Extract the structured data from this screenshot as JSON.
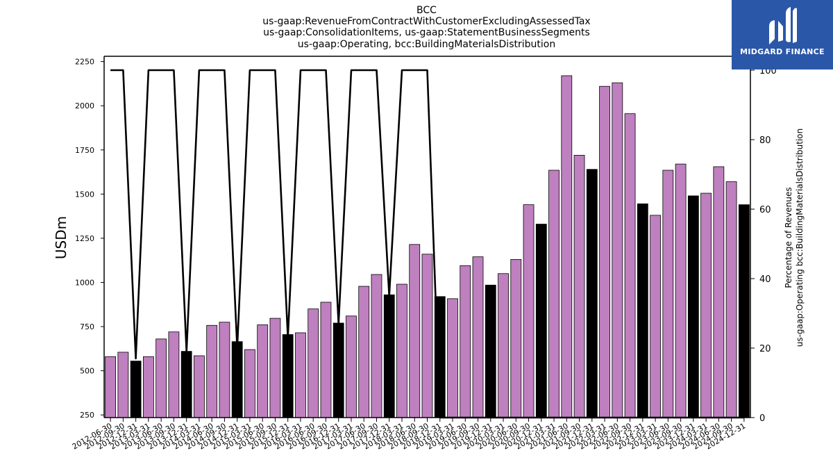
{
  "title_lines": [
    "BCC",
    "us-gaap:RevenueFromContractWithCustomerExcludingAssessedTax",
    "us-gaap:ConsolidationItems, us-gaap:StatementBusinessSegments",
    "us-gaap:Operating, bcc:BuildingMaterialsDistribution"
  ],
  "logo": {
    "text": "MIDGARD FINANCE",
    "background": "#2b57a8"
  },
  "chart_data": {
    "type": "bar",
    "title": "BCC",
    "ylabel": "USDm",
    "y2label_lines": [
      "Percentage of Revenues",
      "us-gaap:Operating bcc:BuildingMaterialsDistribution"
    ],
    "ylim": [
      235,
      2280
    ],
    "y2lim": [
      0,
      104
    ],
    "yticks": [
      250,
      500,
      750,
      1000,
      1250,
      1500,
      1750,
      2000,
      2250
    ],
    "y2ticks": [
      0,
      20,
      40,
      60,
      80,
      100
    ],
    "colors": {
      "quarter_bar": "#bf80bf",
      "annual_bar": "#000000",
      "line": "#000000"
    },
    "categories": [
      "2012-06-30",
      "2012-09-30",
      "2012-12-31",
      "2013-03-31",
      "2013-06-30",
      "2013-09-30",
      "2013-12-31",
      "2014-03-31",
      "2014-06-30",
      "2014-09-30",
      "2014-12-31",
      "2015-03-31",
      "2015-06-30",
      "2015-09-30",
      "2015-12-31",
      "2016-03-31",
      "2016-06-30",
      "2016-09-30",
      "2016-12-31",
      "2017-03-31",
      "2017-06-30",
      "2017-09-30",
      "2017-12-31",
      "2018-03-31",
      "2018-06-30",
      "2018-09-30",
      "2018-12-31",
      "2019-03-31",
      "2019-06-30",
      "2019-09-30",
      "2019-12-31",
      "2020-03-31",
      "2020-06-30",
      "2020-09-30",
      "2020-12-31",
      "2021-03-31",
      "2021-06-30",
      "2021-09-30",
      "2021-12-31",
      "2022-03-31",
      "2022-06-30",
      "2022-09-30",
      "2022-12-31",
      "2023-03-31",
      "2023-06-30",
      "2023-09-30",
      "2023-12-31",
      "2024-03-31",
      "2024-06-30",
      "2024-09-30",
      "2024-12-31"
    ],
    "values": [
      580,
      605,
      555,
      580,
      680,
      720,
      610,
      585,
      757,
      775,
      665,
      620,
      760,
      797,
      705,
      715,
      850,
      888,
      770,
      810,
      978,
      1045,
      930,
      990,
      1215,
      1160,
      920,
      908,
      1095,
      1145,
      985,
      1050,
      1130,
      1440,
      1330,
      1635,
      2170,
      1720,
      1640,
      2110,
      2130,
      1955,
      1445,
      1380,
      1635,
      1670,
      1490,
      1505,
      1655,
      1570,
      1440
    ],
    "bar_kind": [
      "q",
      "q",
      "a",
      "q",
      "q",
      "q",
      "a",
      "q",
      "q",
      "q",
      "a",
      "q",
      "q",
      "q",
      "a",
      "q",
      "q",
      "q",
      "a",
      "q",
      "q",
      "q",
      "a",
      "q",
      "q",
      "q",
      "a",
      "q",
      "q",
      "q",
      "a",
      "q",
      "q",
      "q",
      "a",
      "q",
      "q",
      "q",
      "a",
      "q",
      "q",
      "q",
      "a",
      "q",
      "q",
      "q",
      "a",
      "q",
      "q",
      "q",
      "a"
    ],
    "percent": [
      100,
      100,
      17,
      100,
      100,
      100,
      19,
      100,
      100,
      100,
      20,
      100,
      100,
      100,
      23,
      100,
      100,
      100,
      27,
      100,
      100,
      100,
      35,
      100,
      100,
      100,
      0,
      0,
      0,
      0,
      0,
      0,
      0,
      0,
      0,
      0,
      0,
      0,
      0,
      0,
      0,
      0,
      0,
      0,
      0,
      0,
      0,
      0,
      0,
      0,
      0
    ],
    "grid": false,
    "legend": "none"
  }
}
